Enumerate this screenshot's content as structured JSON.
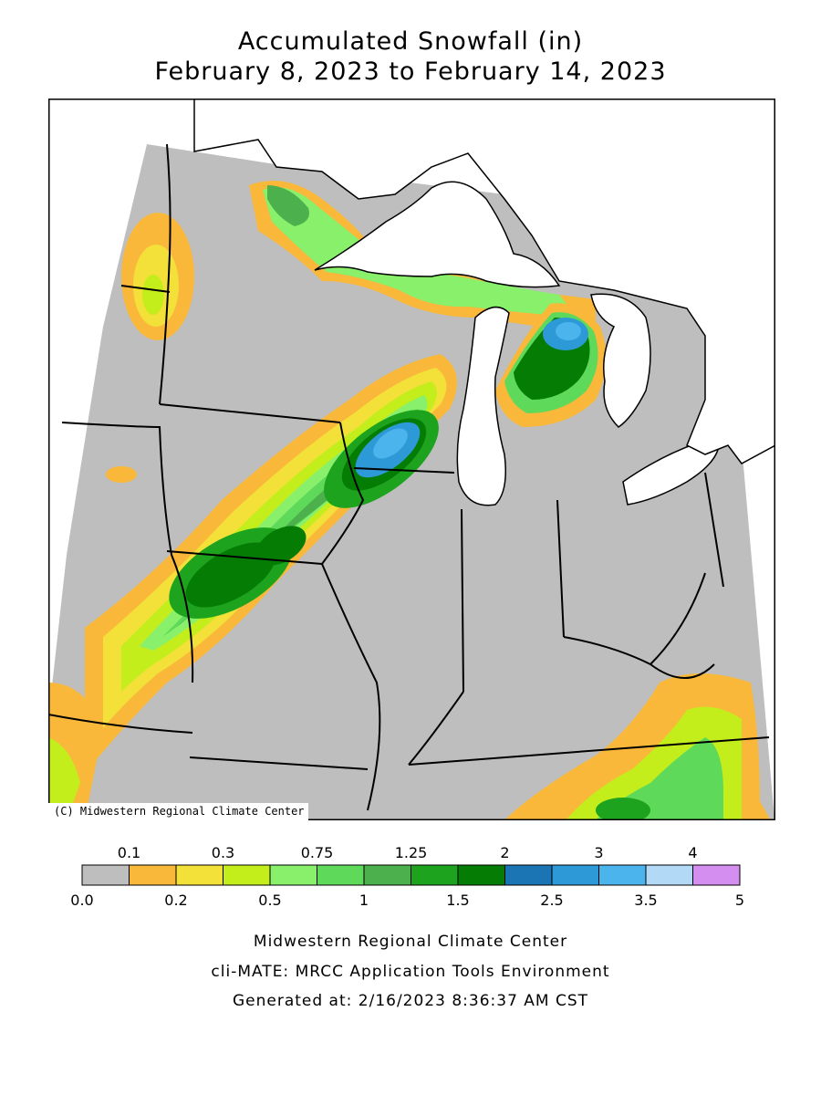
{
  "title": {
    "line1": "Accumulated Snowfall (in)",
    "line2": "February 8, 2023 to February 14, 2023"
  },
  "map": {
    "credit": "(C) Midwestern Regional Climate Center",
    "background_color": "#bebebe",
    "water_color": "#ffffff",
    "boundary_color": "#000000"
  },
  "legend": {
    "top_labels": [
      "0.1",
      "0.3",
      "0.75",
      "1.25",
      "2",
      "3",
      "4"
    ],
    "bottom_labels": [
      "0.0",
      "0.2",
      "0.5",
      "1",
      "1.5",
      "2.5",
      "3.5",
      "5"
    ],
    "colors": [
      "#bebebe",
      "#f9b83a",
      "#f3e039",
      "#c4ee1b",
      "#89f06b",
      "#5fd95a",
      "#4cb04d",
      "#1ea31e",
      "#057d05",
      "#1b75b5",
      "#2d99d6",
      "#4bb4ec",
      "#b2d9f6",
      "#d38ef0"
    ]
  },
  "footer": {
    "line1": "Midwestern Regional Climate Center",
    "line2": "cli-MATE: MRCC Application Tools Environment",
    "line3": "Generated at: 2/16/2023 8:36:37 AM CST"
  }
}
